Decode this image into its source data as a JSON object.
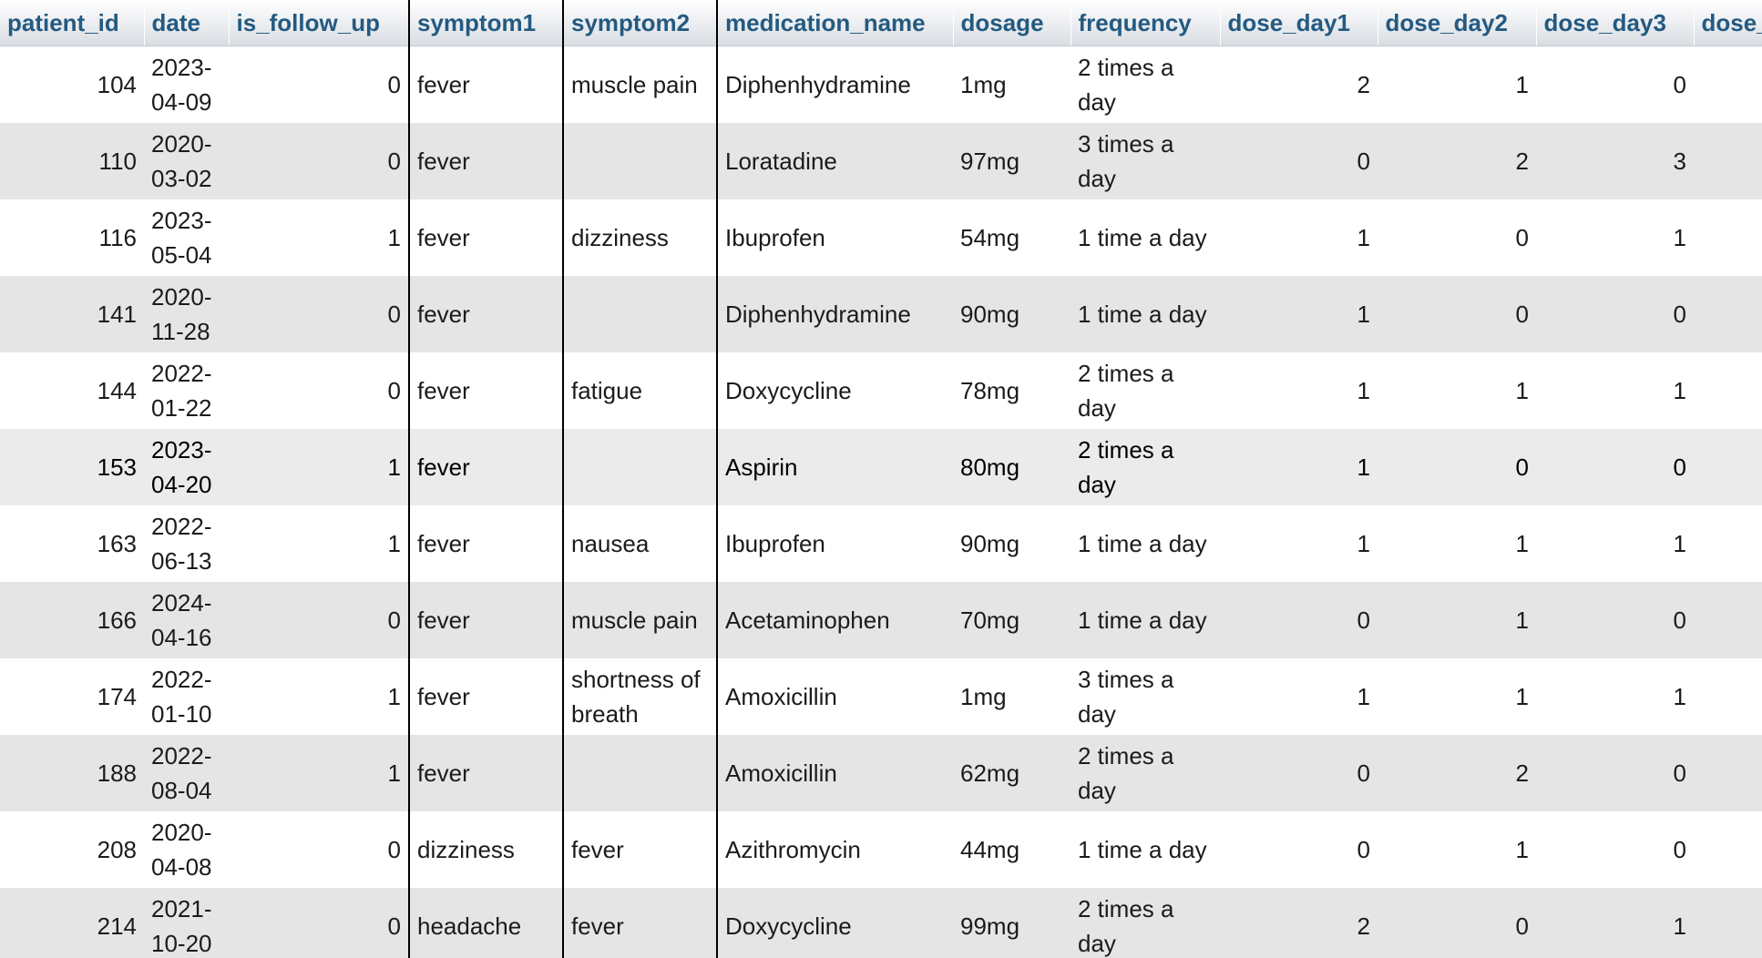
{
  "table": {
    "columns": [
      {
        "key": "patient_id",
        "label": "patient_id"
      },
      {
        "key": "date",
        "label": "date"
      },
      {
        "key": "is_follow_up",
        "label": "is_follow_up"
      },
      {
        "key": "symptom1",
        "label": "symptom1"
      },
      {
        "key": "symptom2",
        "label": "symptom2"
      },
      {
        "key": "medication_name",
        "label": "medication_name"
      },
      {
        "key": "dosage",
        "label": "dosage"
      },
      {
        "key": "frequency",
        "label": "frequency"
      },
      {
        "key": "dose_day1",
        "label": "dose_day1"
      },
      {
        "key": "dose_day2",
        "label": "dose_day2"
      },
      {
        "key": "dose_day3",
        "label": "dose_day3"
      },
      {
        "key": "dose_day4",
        "label": "dose_"
      }
    ],
    "rows": [
      {
        "patient_id": "104",
        "date": "2023-04-09",
        "is_follow_up": "0",
        "symptom1": "fever",
        "symptom2": "muscle pain",
        "medication_name": "Diphenhydramine",
        "dosage": "1mg",
        "frequency": "2 times a day",
        "dose_day1": "2",
        "dose_day2": "1",
        "dose_day3": "0",
        "dose_day4": ""
      },
      {
        "patient_id": "110",
        "date": "2020-03-02",
        "is_follow_up": "0",
        "symptom1": "fever",
        "symptom2": "",
        "medication_name": "Loratadine",
        "dosage": "97mg",
        "frequency": "3 times a day",
        "dose_day1": "0",
        "dose_day2": "2",
        "dose_day3": "3",
        "dose_day4": ""
      },
      {
        "patient_id": "116",
        "date": "2023-05-04",
        "is_follow_up": "1",
        "symptom1": "fever",
        "symptom2": "dizziness",
        "medication_name": "Ibuprofen",
        "dosage": "54mg",
        "frequency": "1 time a day",
        "dose_day1": "1",
        "dose_day2": "0",
        "dose_day3": "1",
        "dose_day4": ""
      },
      {
        "patient_id": "141",
        "date": "2020-11-28",
        "is_follow_up": "0",
        "symptom1": "fever",
        "symptom2": "",
        "medication_name": "Diphenhydramine",
        "dosage": "90mg",
        "frequency": "1 time a day",
        "dose_day1": "1",
        "dose_day2": "0",
        "dose_day3": "0",
        "dose_day4": ""
      },
      {
        "patient_id": "144",
        "date": "2022-01-22",
        "is_follow_up": "0",
        "symptom1": "fever",
        "symptom2": "fatigue",
        "medication_name": "Doxycycline",
        "dosage": "78mg",
        "frequency": "2 times a day",
        "dose_day1": "1",
        "dose_day2": "1",
        "dose_day3": "1",
        "dose_day4": ""
      },
      {
        "patient_id": "153",
        "date": "2023-04-20",
        "is_follow_up": "1",
        "symptom1": "fever",
        "symptom2": "",
        "medication_name": "Aspirin",
        "dosage": "80mg",
        "frequency": "2 times a day",
        "dose_day1": "1",
        "dose_day2": "0",
        "dose_day3": "0",
        "dose_day4": "",
        "marked": true
      },
      {
        "patient_id": "163",
        "date": "2022-06-13",
        "is_follow_up": "1",
        "symptom1": "fever",
        "symptom2": "nausea",
        "medication_name": "Ibuprofen",
        "dosage": "90mg",
        "frequency": "1 time a day",
        "dose_day1": "1",
        "dose_day2": "1",
        "dose_day3": "1",
        "dose_day4": ""
      },
      {
        "patient_id": "166",
        "date": "2024-04-16",
        "is_follow_up": "0",
        "symptom1": "fever",
        "symptom2": "muscle pain",
        "medication_name": "Acetaminophen",
        "dosage": "70mg",
        "frequency": "1 time a day",
        "dose_day1": "0",
        "dose_day2": "1",
        "dose_day3": "0",
        "dose_day4": ""
      },
      {
        "patient_id": "174",
        "date": "2022-01-10",
        "is_follow_up": "1",
        "symptom1": "fever",
        "symptom2": "shortness of breath",
        "medication_name": "Amoxicillin",
        "dosage": "1mg",
        "frequency": "3 times a day",
        "dose_day1": "1",
        "dose_day2": "1",
        "dose_day3": "1",
        "dose_day4": ""
      },
      {
        "patient_id": "188",
        "date": "2022-08-04",
        "is_follow_up": "1",
        "symptom1": "fever",
        "symptom2": "",
        "medication_name": "Amoxicillin",
        "dosage": "62mg",
        "frequency": "2 times a day",
        "dose_day1": "0",
        "dose_day2": "2",
        "dose_day3": "0",
        "dose_day4": ""
      },
      {
        "patient_id": "208",
        "date": "2020-04-08",
        "is_follow_up": "0",
        "symptom1": "dizziness",
        "symptom2": "fever",
        "medication_name": "Azithromycin",
        "dosage": "44mg",
        "frequency": "1 time a day",
        "dose_day1": "0",
        "dose_day2": "1",
        "dose_day3": "0",
        "dose_day4": ""
      },
      {
        "patient_id": "214",
        "date": "2021-10-20",
        "is_follow_up": "0",
        "symptom1": "headache",
        "symptom2": "fever",
        "medication_name": "Doxycycline",
        "dosage": "99mg",
        "frequency": "2 times a day",
        "dose_day1": "2",
        "dose_day2": "0",
        "dose_day3": "1",
        "dose_day4": ""
      }
    ]
  },
  "colors": {
    "header_text": "#235a81",
    "row_odd": "#ffffff",
    "row_even": "#e5e5e5",
    "row_marked": "#ebebeb"
  }
}
